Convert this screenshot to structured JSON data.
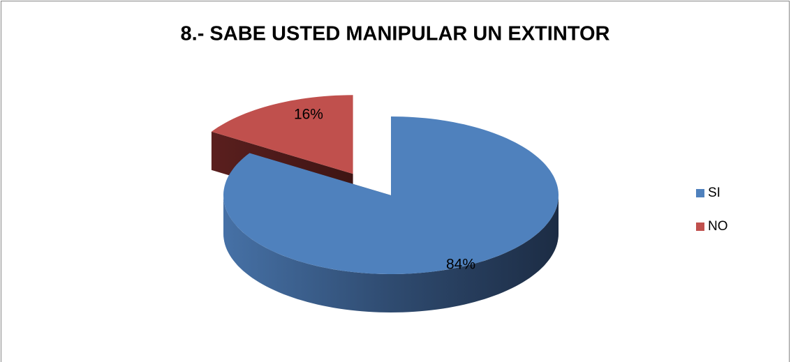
{
  "chart_data": {
    "type": "pie",
    "title": "8.- SABE USTED MANIPULAR UN EXTINTOR",
    "categories": [
      "SI",
      "NO"
    ],
    "values": [
      84,
      16
    ],
    "value_labels": [
      "84%",
      "16%"
    ],
    "colors": [
      "#4f81bd",
      "#c0504d"
    ],
    "legend": "right",
    "exploded": [
      false,
      true
    ]
  }
}
